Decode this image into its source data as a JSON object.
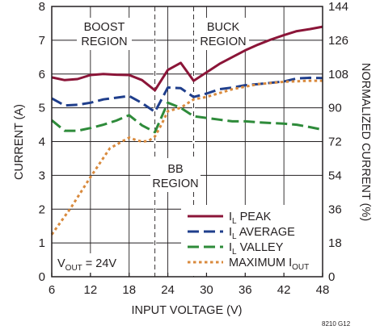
{
  "chart_data": {
    "type": "line",
    "xlabel": "INPUT VOLTAGE (V)",
    "ylabel_left": "CURRENT  (A)",
    "ylabel_right": "NORMALIZED CURRENT  (%)",
    "xlim": [
      6,
      48
    ],
    "ylim_left": [
      0,
      8
    ],
    "ylim_right": [
      0,
      144
    ],
    "x_ticks": [
      "6",
      "12",
      "18",
      "24",
      "30",
      "36",
      "42",
      "48"
    ],
    "y_left_ticks": [
      "0",
      "1",
      "2",
      "3",
      "4",
      "5",
      "6",
      "7",
      "8"
    ],
    "y_right_ticks": [
      "0",
      "18",
      "36",
      "54",
      "72",
      "90",
      "108",
      "126",
      "144"
    ],
    "grid": true,
    "legend_position": "bottom-right",
    "series": [
      {
        "name_parts": [
          "I",
          "L",
          " PEAK"
        ],
        "color": "#8b1538",
        "style": "solid",
        "x": [
          6,
          8,
          10,
          12,
          14,
          16,
          18,
          20,
          22,
          24,
          26,
          28,
          30,
          32,
          34,
          36,
          38,
          40,
          42,
          44,
          46,
          48
        ],
        "y": [
          5.9,
          5.82,
          5.85,
          5.97,
          6.0,
          5.98,
          5.97,
          5.82,
          5.52,
          6.12,
          6.33,
          5.8,
          6.05,
          6.3,
          6.5,
          6.7,
          6.87,
          7.02,
          7.15,
          7.27,
          7.33,
          7.4
        ]
      },
      {
        "name_parts": [
          "I",
          "L",
          " AVERAGE"
        ],
        "color": "#1f3e8c",
        "style": "dashed",
        "x": [
          6,
          8,
          10,
          12,
          14,
          16,
          18,
          20,
          22,
          24,
          26,
          28,
          30,
          32,
          34,
          36,
          38,
          40,
          42,
          44,
          46,
          48
        ],
        "y": [
          5.28,
          5.07,
          5.09,
          5.15,
          5.25,
          5.3,
          5.35,
          5.14,
          4.88,
          5.6,
          5.58,
          5.32,
          5.42,
          5.55,
          5.6,
          5.67,
          5.7,
          5.74,
          5.78,
          5.87,
          5.89,
          5.88
        ]
      },
      {
        "name_parts": [
          "I",
          "L",
          " VALLEY"
        ],
        "color": "#2e8b3a",
        "style": "dashed",
        "x": [
          6,
          8,
          10,
          12,
          14,
          16,
          18,
          20,
          22,
          24,
          26,
          28,
          30,
          32,
          34,
          36,
          38,
          40,
          42,
          44,
          46,
          48
        ],
        "y": [
          4.63,
          4.32,
          4.32,
          4.4,
          4.5,
          4.62,
          4.78,
          4.48,
          4.28,
          5.15,
          5.0,
          4.75,
          4.7,
          4.65,
          4.6,
          4.6,
          4.57,
          4.55,
          4.53,
          4.5,
          4.43,
          4.35
        ]
      },
      {
        "name_parts": [
          "MAXIMUM I",
          "OUT",
          ""
        ],
        "color": "#d98a3d",
        "style": "dotted",
        "x": [
          6,
          9,
          12,
          15,
          18,
          19,
          20,
          21,
          22,
          23,
          24,
          26,
          28,
          30,
          34,
          38,
          42,
          46,
          48
        ],
        "y": [
          1.25,
          2.05,
          2.95,
          3.8,
          4.12,
          4.05,
          4.0,
          4.02,
          4.15,
          4.5,
          4.9,
          5.0,
          5.25,
          5.32,
          5.55,
          5.7,
          5.77,
          5.8,
          5.8
        ]
      }
    ],
    "annotations": {
      "boost_line1": "BOOST",
      "boost_line2": "REGION",
      "buck_line1": "BUCK",
      "buck_line2": "REGION",
      "bb_line1": "BB",
      "bb_line2": "REGION",
      "bb_bounds_x": [
        22,
        28
      ],
      "vout_prefix": "V",
      "vout_sub": "OUT",
      "vout_suffix": " = 24V"
    },
    "figure_number": "8210 G12"
  }
}
